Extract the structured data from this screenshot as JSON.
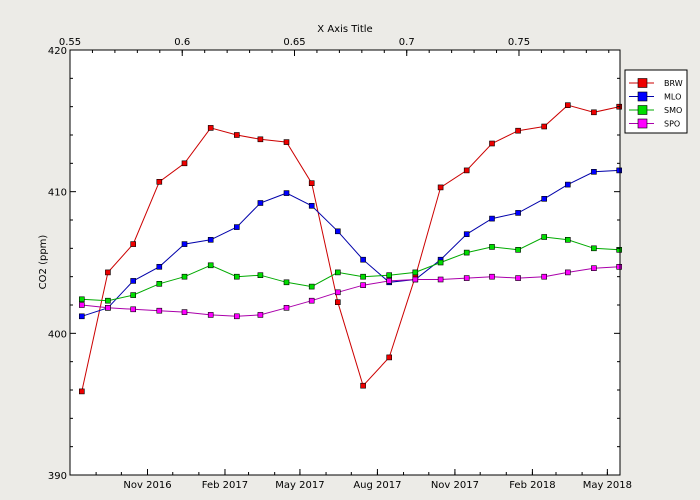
{
  "chart_data": {
    "type": "line",
    "title": "",
    "top_axis": {
      "label": "X Axis Title",
      "ticks": [
        0.55,
        0.6,
        0.65,
        0.7,
        0.75
      ],
      "tick_labels": [
        "0.55",
        "0.6",
        "0.65",
        "0.7",
        "0.75"
      ],
      "range": [
        0.55,
        0.795
      ]
    },
    "x_axis": {
      "label": "",
      "tick_labels": [
        "Nov 2016",
        "Feb 2017",
        "May 2017",
        "Aug 2017",
        "Nov 2017",
        "Feb 2018",
        "May 2018"
      ],
      "tick_months": [
        "2016-11",
        "2017-02",
        "2017-05",
        "2017-08",
        "2017-11",
        "2018-02",
        "2018-05"
      ],
      "range": [
        "2016-08-01",
        "2018-05-16"
      ]
    },
    "y_axis": {
      "label": "CO2 (ppm)",
      "ticks": [
        390,
        400,
        410,
        420
      ],
      "tick_labels": [
        "390",
        "400",
        "410",
        "420"
      ],
      "range": [
        390,
        420
      ]
    },
    "x_dates": [
      "2016-08-15",
      "2016-09-15",
      "2016-10-15",
      "2016-11-15",
      "2016-12-15",
      "2017-01-15",
      "2017-02-15",
      "2017-03-15",
      "2017-04-15",
      "2017-05-15",
      "2017-06-15",
      "2017-07-15",
      "2017-08-15",
      "2017-09-15",
      "2017-10-15",
      "2017-11-15",
      "2017-12-15",
      "2018-01-15",
      "2018-02-15",
      "2018-03-15",
      "2018-04-15",
      "2018-05-15"
    ],
    "series": [
      {
        "name": "BRW",
        "color": "#cc0000",
        "marker_color": "#ee0000",
        "values": [
          395.9,
          404.3,
          406.3,
          410.7,
          412.0,
          414.5,
          414.0,
          413.7,
          413.5,
          410.6,
          402.2,
          396.3,
          398.3,
          404.0,
          410.3,
          411.5,
          413.4,
          414.3,
          414.6,
          416.1,
          415.6,
          416.0
        ]
      },
      {
        "name": "MLO",
        "color": "#0000aa",
        "marker_color": "#0000ff",
        "values": [
          401.2,
          401.8,
          403.7,
          404.7,
          406.3,
          406.6,
          407.5,
          409.2,
          409.9,
          409.0,
          407.2,
          405.2,
          403.6,
          403.8,
          405.2,
          407.0,
          408.1,
          408.5,
          409.5,
          410.5,
          411.4,
          411.5
        ]
      },
      {
        "name": "SMO",
        "color": "#00aa00",
        "marker_color": "#00dd00",
        "values": [
          402.4,
          402.3,
          402.7,
          403.5,
          404.0,
          404.8,
          404.0,
          404.1,
          403.6,
          403.3,
          404.3,
          404.0,
          404.1,
          404.3,
          405.0,
          405.7,
          406.1,
          405.9,
          406.8,
          406.6,
          406.0,
          405.9
        ]
      },
      {
        "name": "SPO",
        "color": "#aa00aa",
        "marker_color": "#ff00ff",
        "values": [
          402.0,
          401.8,
          401.7,
          401.6,
          401.5,
          401.3,
          401.2,
          401.3,
          401.8,
          402.3,
          402.9,
          403.4,
          403.7,
          403.8,
          403.8,
          403.9,
          404.0,
          403.9,
          404.0,
          404.3,
          404.6,
          404.7
        ]
      }
    ],
    "grid": false,
    "legend_position": "right"
  }
}
